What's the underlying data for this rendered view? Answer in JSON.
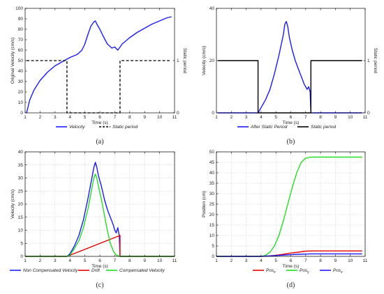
{
  "chart_data": [
    {
      "type": "line",
      "caption": "(a)",
      "xlabel": "Time (s)",
      "ylabel": "Original Velocity (cm/s)",
      "y2label": "Static period",
      "xlim": [
        1,
        11
      ],
      "ylim": [
        0,
        100
      ],
      "y2lim": [
        0,
        2
      ],
      "xticks": [
        "1",
        "2",
        "3",
        "4",
        "5",
        "6",
        "7",
        "8",
        "9",
        "10",
        "11"
      ],
      "yticks": [
        "0",
        "10",
        "20",
        "30",
        "40",
        "50",
        "60",
        "70",
        "80",
        "90",
        "100"
      ],
      "y2ticks": [
        "0",
        "1"
      ],
      "grid": false,
      "legend_position": "bottom",
      "series": [
        {
          "name": "Velocity",
          "axis": "left",
          "color": "#1a1aff",
          "style": "solid",
          "x": [
            1.1,
            1.3,
            1.6,
            2.0,
            2.5,
            3.0,
            3.5,
            4.0,
            4.5,
            4.8,
            5.0,
            5.2,
            5.4,
            5.6,
            5.7,
            5.8,
            6.0,
            6.2,
            6.5,
            6.8,
            7.0,
            7.2,
            7.4,
            7.5,
            8.0,
            8.5,
            9.0,
            9.5,
            10.0,
            10.5,
            10.8
          ],
          "y": [
            0,
            12,
            22,
            31,
            39,
            45,
            49,
            53,
            56,
            60,
            66,
            75,
            83,
            87,
            88,
            85,
            80,
            74,
            66,
            62,
            63,
            60,
            64,
            66,
            72,
            77,
            81,
            85,
            88,
            91,
            92
          ]
        },
        {
          "name": "Static period",
          "axis": "right",
          "color": "#000000",
          "style": "dashed",
          "x": [
            1.1,
            3.8,
            3.8,
            7.35,
            7.35,
            10.8
          ],
          "y": [
            1,
            1,
            0,
            0,
            1,
            1
          ]
        }
      ]
    },
    {
      "type": "line",
      "caption": "(b)",
      "xlabel": "Time (s)",
      "ylabel": "Velocity (cm/s)",
      "y2label": "Static period",
      "xlim": [
        1,
        11
      ],
      "ylim": [
        0,
        40
      ],
      "y2lim": [
        0,
        2
      ],
      "xticks": [
        "1",
        "2",
        "3",
        "4",
        "5",
        "6",
        "7",
        "8",
        "9",
        "10",
        "11"
      ],
      "yticks": [
        "0",
        "20",
        "40"
      ],
      "y2ticks": [
        "0",
        "1"
      ],
      "grid": false,
      "legend_position": "bottom",
      "series": [
        {
          "name": "After Static Period",
          "axis": "left",
          "color": "#1a1aff",
          "style": "solid",
          "x": [
            1.1,
            3.8,
            3.9,
            4.1,
            4.3,
            4.6,
            4.9,
            5.2,
            5.5,
            5.6,
            5.7,
            5.8,
            5.9,
            6.1,
            6.3,
            6.5,
            6.7,
            6.9,
            7.0,
            7.1,
            7.2,
            7.3,
            7.35,
            10.8
          ],
          "y": [
            0,
            0,
            1,
            3,
            5,
            9,
            15,
            22,
            30,
            34,
            35,
            33,
            29,
            24,
            20,
            17,
            14,
            11,
            10,
            9,
            10,
            8,
            0,
            0
          ]
        },
        {
          "name": "Static period",
          "axis": "right",
          "color": "#000000",
          "style": "solid",
          "x": [
            1.1,
            3.8,
            3.8,
            7.35,
            7.35,
            10.8
          ],
          "y": [
            1,
            1,
            0,
            0,
            1,
            1
          ]
        }
      ]
    },
    {
      "type": "line",
      "caption": "(c)",
      "xlabel": "Time (s)",
      "ylabel": "Velocity (cm/s)",
      "xlim": [
        1,
        11
      ],
      "ylim": [
        0,
        40
      ],
      "xticks": [
        "1",
        "2",
        "3",
        "4",
        "5",
        "6",
        "7",
        "8",
        "9",
        "10",
        "11"
      ],
      "yticks": [
        "0",
        "5",
        "10",
        "15",
        "20",
        "25",
        "30",
        "35",
        "40"
      ],
      "grid": true,
      "legend_position": "bottom",
      "series": [
        {
          "name": "Non Compensated Velocity",
          "color": "#1a1aff",
          "style": "solid",
          "x": [
            1.0,
            3.8,
            4.0,
            4.3,
            4.6,
            4.9,
            5.2,
            5.5,
            5.6,
            5.7,
            5.8,
            5.9,
            6.1,
            6.3,
            6.5,
            6.7,
            6.9,
            7.0,
            7.1,
            7.2,
            7.3,
            7.35,
            11.0
          ],
          "y": [
            0,
            0,
            1,
            4,
            8,
            14,
            22,
            31,
            34,
            36,
            34,
            31,
            27,
            22,
            18,
            15,
            12,
            10,
            9,
            11,
            8,
            0,
            0
          ]
        },
        {
          "name": "Drift",
          "color": "#e60000",
          "style": "solid",
          "x": [
            1.0,
            3.8,
            7.35,
            7.35,
            11.0
          ],
          "y": [
            0,
            0,
            8,
            0,
            0
          ]
        },
        {
          "name": "Compensated Velocity",
          "color": "#22dd22",
          "style": "solid",
          "x": [
            1.0,
            3.8,
            4.0,
            4.3,
            4.6,
            4.9,
            5.2,
            5.5,
            5.6,
            5.7,
            5.8,
            5.9,
            6.1,
            6.3,
            6.5,
            6.7,
            6.9,
            7.1,
            7.35,
            11.0
          ],
          "y": [
            0,
            0,
            0.5,
            3,
            6,
            11,
            18,
            27,
            30,
            31.5,
            30,
            27,
            22,
            16,
            10,
            5,
            2,
            0.5,
            0,
            0
          ]
        }
      ]
    },
    {
      "type": "line",
      "caption": "(d)",
      "xlabel": "Time (s)",
      "ylabel": "Position (cm)",
      "xlim": [
        1,
        11
      ],
      "ylim": [
        0,
        50
      ],
      "xticks": [
        "1",
        "2",
        "3",
        "4",
        "5",
        "6",
        "7",
        "8",
        "9",
        "10",
        "11"
      ],
      "yticks": [
        "0",
        "5",
        "10",
        "15",
        "20",
        "25",
        "30",
        "35",
        "40",
        "45",
        "50"
      ],
      "grid": true,
      "legend_position": "bottom",
      "series": [
        {
          "name": "Pos",
          "subscript": "x",
          "color": "#e60000",
          "style": "solid",
          "x": [
            1.0,
            4.0,
            4.5,
            5.0,
            5.5,
            6.0,
            6.5,
            7.0,
            7.35,
            10.8
          ],
          "y": [
            0,
            0,
            0.2,
            0.5,
            1.0,
            1.6,
            2.0,
            2.5,
            2.6,
            2.6
          ]
        },
        {
          "name": "Pos",
          "subscript": "y",
          "color": "#22dd22",
          "style": "solid",
          "x": [
            1.0,
            4.0,
            4.3,
            4.6,
            4.9,
            5.2,
            5.5,
            5.8,
            6.1,
            6.4,
            6.7,
            7.0,
            7.35,
            10.8
          ],
          "y": [
            0,
            0,
            0.5,
            2,
            5,
            10,
            17,
            25,
            33,
            40,
            45,
            47,
            47.5,
            47.5
          ]
        },
        {
          "name": "Pos",
          "subscript": "z",
          "color": "#1a1aff",
          "style": "solid",
          "x": [
            1.0,
            4.0,
            4.5,
            5.0,
            5.5,
            6.0,
            6.5,
            7.0,
            7.35,
            10.8
          ],
          "y": [
            0,
            0,
            0.2,
            0.4,
            0.6,
            0.8,
            1.0,
            1.1,
            1.2,
            1.2
          ]
        }
      ]
    }
  ]
}
